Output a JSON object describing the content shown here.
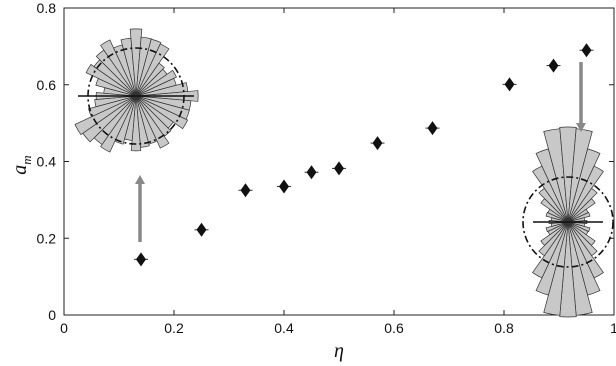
{
  "chart_data": {
    "type": "scatter",
    "title": "",
    "xlabel": "η",
    "ylabel_main": "a",
    "ylabel_sub": "m",
    "xlim": [
      0,
      1.0
    ],
    "ylim": [
      0,
      0.8
    ],
    "x_ticks": [
      "0",
      "0.2",
      "0.4",
      "0.6",
      "0.8",
      "1"
    ],
    "x_tick_values": [
      0,
      0.2,
      0.4,
      0.6,
      0.8,
      1.0
    ],
    "y_ticks": [
      "0",
      "0.2",
      "0.4",
      "0.6",
      "0.8"
    ],
    "y_tick_values": [
      0,
      0.2,
      0.4,
      0.6,
      0.8
    ],
    "grid": false,
    "marker": "diamond",
    "marker_color": "#111111",
    "inset_fill": "#c8c8c8",
    "arrow_color": "#888888",
    "points": [
      {
        "x": 0.14,
        "y": 0.145
      },
      {
        "x": 0.25,
        "y": 0.222
      },
      {
        "x": 0.33,
        "y": 0.325
      },
      {
        "x": 0.4,
        "y": 0.335
      },
      {
        "x": 0.45,
        "y": 0.372
      },
      {
        "x": 0.5,
        "y": 0.382
      },
      {
        "x": 0.57,
        "y": 0.448
      },
      {
        "x": 0.67,
        "y": 0.487
      },
      {
        "x": 0.81,
        "y": 0.601
      },
      {
        "x": 0.89,
        "y": 0.65
      },
      {
        "x": 0.95,
        "y": 0.69
      }
    ],
    "insets": [
      {
        "name": "rose-left",
        "direction": "isotropic",
        "relates_to_x": 0.14
      },
      {
        "name": "rose-right",
        "direction": "vertical",
        "relates_to_x": 0.95
      }
    ]
  }
}
